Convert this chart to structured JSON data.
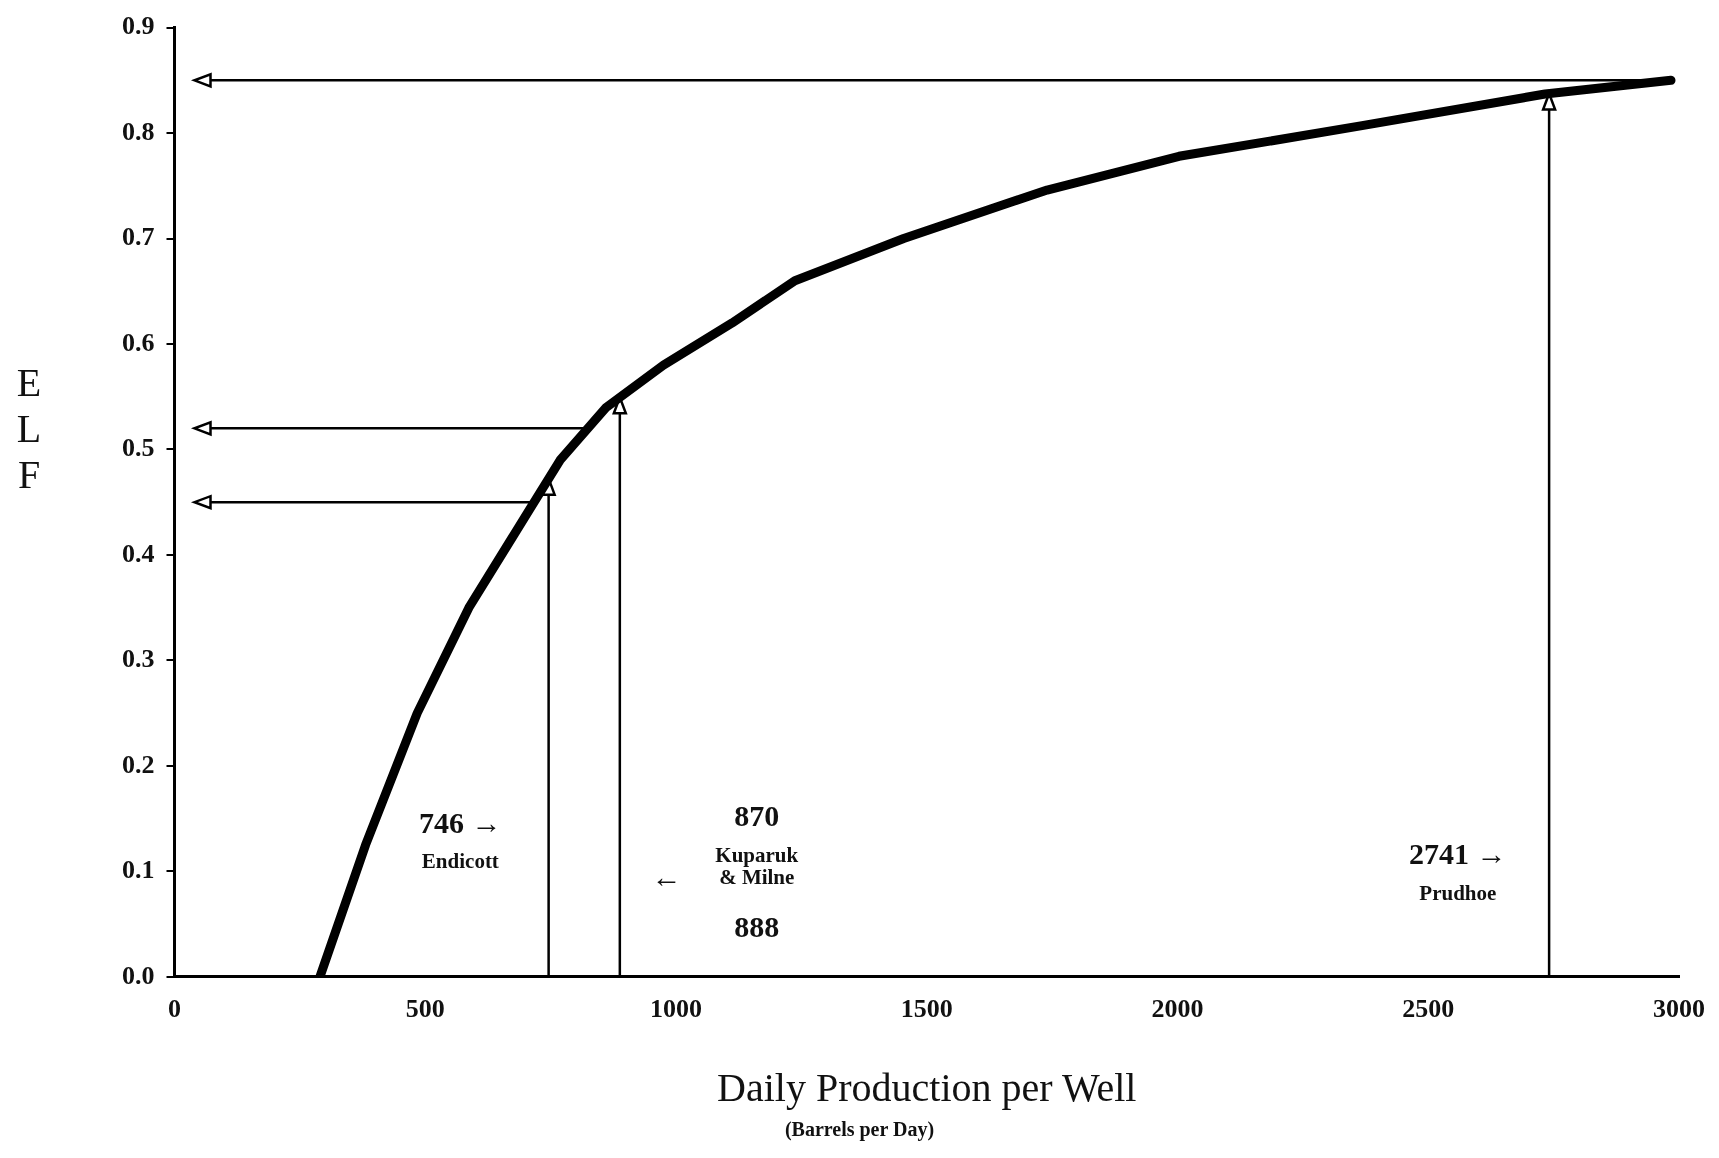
{
  "chart_data": {
    "type": "line",
    "xlabel": "Daily Production per Well",
    "ylabel": "ELF",
    "xlim": [
      0,
      3000
    ],
    "xticks": [
      0,
      500,
      1000,
      1500,
      2000,
      2500,
      3000
    ],
    "ylim": [
      0,
      0.9
    ],
    "yticks": [
      {
        "value": 0,
        "label": "0.0"
      },
      0.1,
      0.2,
      0.3,
      0.4,
      0.5,
      0.6,
      0.7,
      0.8,
      0.9
    ],
    "grid": false,
    "legend": false,
    "marker": "none",
    "line_style": "solid",
    "series": [
      {
        "color": "#000000",
        "x": [
          290,
          381,
          484,
          587,
          678,
          769,
          861,
          975,
          1112,
          1237,
          1454,
          1740,
          2003,
          2368,
          2733,
          2984
        ],
        "values": [
          0,
          0.125,
          0.25,
          0.35,
          0.42,
          0.49,
          0.54,
          0.58,
          0.62,
          0.66,
          0.7,
          0.746,
          0.778,
          0.807,
          0.837,
          0.85
        ]
      }
    ],
    "ref_lines": [
      {
        "axis": "y",
        "value": 0.85,
        "color": "#000000"
      },
      {
        "axis": "y",
        "value": 0.52,
        "color": "#000000"
      },
      {
        "axis": "y",
        "value": 0.45,
        "color": "#000000"
      },
      {
        "axis": "x",
        "value": 746,
        "color": "#000000"
      },
      {
        "axis": "x",
        "value": 888,
        "color": "#000000"
      },
      {
        "axis": "x",
        "value": 2741,
        "color": "#000000"
      }
    ],
    "annotations": [
      "746 →",
      "Endicott",
      "870",
      "Kuparuk",
      "& Milne",
      "←",
      "888",
      "2741 →",
      "Prudhoe",
      "(Barrels per Day)"
    ]
  }
}
